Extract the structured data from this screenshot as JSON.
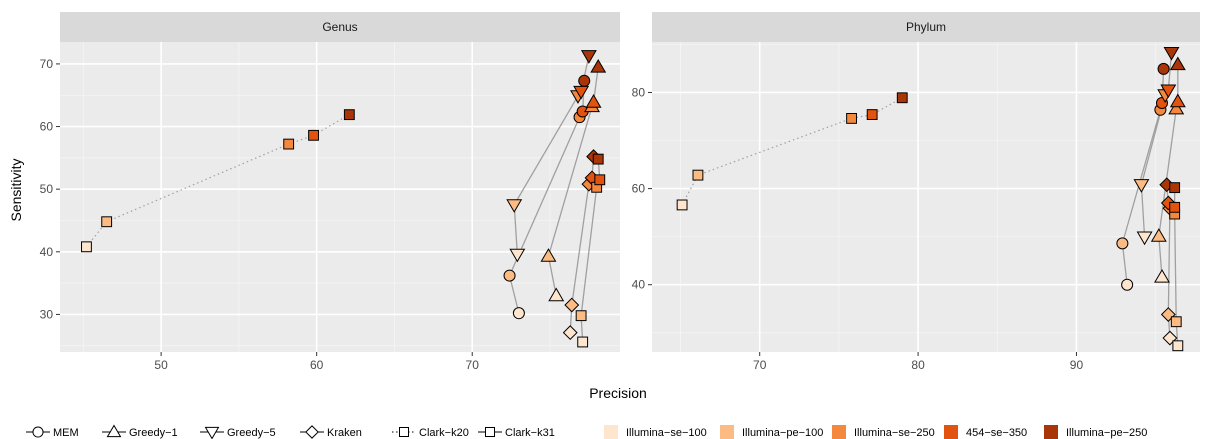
{
  "chart_data": {
    "type": "scatter",
    "xlabel": "Precision",
    "ylabel": "Sensitivity",
    "methods": [
      "MEM",
      "Greedy−1",
      "Greedy−5",
      "Kraken",
      "Clark−k20",
      "Clark−k31"
    ],
    "method_shapes": [
      "circle",
      "triangle-up",
      "triangle-down",
      "diamond",
      "square",
      "square"
    ],
    "method_lines": [
      "solid",
      "solid",
      "solid",
      "solid",
      "dotted",
      "solid"
    ],
    "datasets": [
      "Illumina−se−100",
      "Illumina−pe−100",
      "Illumina−se−250",
      "454−se−350",
      "Illumina−pe−250"
    ],
    "dataset_colors": [
      "#fee6ce",
      "#fdbb84",
      "#f4883d",
      "#e1530e",
      "#a93608"
    ],
    "panels": [
      {
        "title": "Genus",
        "xlim": [
          43.5,
          79.5
        ],
        "ylim": [
          24,
          73.5
        ],
        "xticks": [
          50,
          60,
          70
        ],
        "yticks": [
          30,
          40,
          50,
          60,
          70
        ],
        "series": [
          {
            "method": "MEM",
            "points": [
              [
                73.0,
                30.2
              ],
              [
                72.4,
                36.2
              ],
              [
                76.9,
                61.5
              ],
              [
                77.1,
                62.4
              ],
              [
                77.2,
                67.3
              ]
            ]
          },
          {
            "method": "Greedy−1",
            "points": [
              [
                75.4,
                33.0
              ],
              [
                74.9,
                39.3
              ],
              [
                77.7,
                63.2
              ],
              [
                77.8,
                63.9
              ],
              [
                78.1,
                69.5
              ]
            ]
          },
          {
            "method": "Greedy−5",
            "points": [
              [
                72.9,
                39.6
              ],
              [
                72.7,
                47.5
              ],
              [
                76.8,
                64.9
              ],
              [
                77.0,
                65.6
              ],
              [
                77.5,
                71.3
              ]
            ]
          },
          {
            "method": "Kraken",
            "points": [
              [
                76.3,
                27.1
              ],
              [
                76.4,
                31.5
              ],
              [
                77.5,
                50.8
              ],
              [
                77.7,
                51.8
              ],
              [
                77.8,
                55.2
              ]
            ]
          },
          {
            "method": "Clark−k20",
            "points": [
              [
                45.2,
                40.8
              ],
              [
                46.5,
                44.8
              ],
              [
                58.2,
                57.2
              ],
              [
                59.8,
                58.6
              ],
              [
                62.1,
                61.9
              ]
            ]
          },
          {
            "method": "Clark−k31",
            "points": [
              [
                77.1,
                25.6
              ],
              [
                77.0,
                29.8
              ],
              [
                78.0,
                50.3
              ],
              [
                78.2,
                51.5
              ],
              [
                78.1,
                54.8
              ]
            ]
          }
        ]
      },
      {
        "title": "Phylum",
        "xlim": [
          63.2,
          97.8
        ],
        "ylim": [
          26,
          90.5
        ],
        "xticks": [
          70,
          80,
          90
        ],
        "yticks": [
          40,
          60,
          80
        ],
        "series": [
          {
            "method": "MEM",
            "points": [
              [
                93.2,
                40.0
              ],
              [
                92.9,
                48.6
              ],
              [
                95.3,
                76.4
              ],
              [
                95.4,
                77.8
              ],
              [
                95.5,
                84.9
              ]
            ]
          },
          {
            "method": "Greedy−1",
            "points": [
              [
                95.4,
                41.6
              ],
              [
                95.2,
                50.1
              ],
              [
                96.3,
                76.6
              ],
              [
                96.4,
                78.1
              ],
              [
                96.4,
                85.8
              ]
            ]
          },
          {
            "method": "Greedy−5",
            "points": [
              [
                94.3,
                49.9
              ],
              [
                94.1,
                60.8
              ],
              [
                95.6,
                79.5
              ],
              [
                95.8,
                80.5
              ],
              [
                96.0,
                88.3
              ]
            ]
          },
          {
            "method": "Kraken",
            "points": [
              [
                95.9,
                28.9
              ],
              [
                95.8,
                33.8
              ],
              [
                95.9,
                55.9
              ],
              [
                95.8,
                57.0
              ],
              [
                95.7,
                60.8
              ]
            ]
          },
          {
            "method": "Clark−k20",
            "points": [
              [
                65.1,
                56.6
              ],
              [
                66.1,
                62.8
              ],
              [
                75.8,
                74.6
              ],
              [
                77.1,
                75.4
              ],
              [
                79.0,
                78.9
              ]
            ]
          },
          {
            "method": "Clark−k31",
            "points": [
              [
                96.4,
                27.3
              ],
              [
                96.3,
                32.3
              ],
              [
                96.2,
                54.7
              ],
              [
                96.2,
                56.1
              ],
              [
                96.2,
                60.2
              ]
            ]
          }
        ]
      }
    ]
  }
}
